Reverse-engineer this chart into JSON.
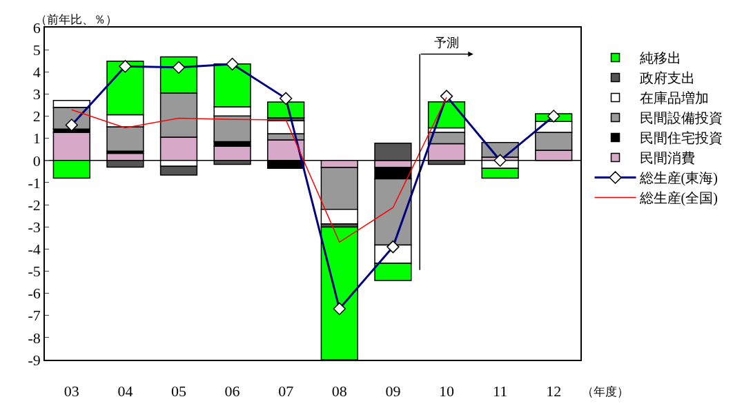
{
  "chart_data": {
    "type": "bar",
    "stacked": true,
    "xlabel": "（年度）",
    "ylabel": "（前年比、％）",
    "categories": [
      "03",
      "04",
      "05",
      "06",
      "07",
      "08",
      "09",
      "10",
      "11",
      "12"
    ],
    "ylim": [
      -9,
      6
    ],
    "yticks": [
      -9,
      -8,
      -7,
      -6,
      -5,
      -4,
      -3,
      -2,
      -1,
      0,
      1,
      2,
      3,
      4,
      5,
      6
    ],
    "grid": false,
    "legend": "right",
    "annotations": [
      "予測"
    ],
    "ref_lines": [
      {
        "axis": "y",
        "value": 0,
        "color": "#000000"
      }
    ],
    "series": [
      {
        "name": "民間消費",
        "color": "#d8a8c8",
        "values": [
          1.27,
          0.32,
          1.05,
          0.64,
          0.93,
          -0.32,
          -0.32,
          0.76,
          0.15,
          0.46
        ]
      },
      {
        "name": "民間住宅投資",
        "color": "#000000",
        "values": [
          0.15,
          0.1,
          null,
          0.21,
          -0.36,
          null,
          -0.51,
          null,
          null,
          null
        ]
      },
      {
        "name": "民間設備投資",
        "color": "#999999",
        "values": [
          0.98,
          1.1,
          1.99,
          1.16,
          0.28,
          -1.89,
          -2.99,
          0.51,
          0.66,
          0.81
        ]
      },
      {
        "name": "在庫品増加",
        "color": "#ffffff",
        "values": [
          0.31,
          0.54,
          -0.26,
          0.41,
          0.58,
          -0.66,
          -0.82,
          0.2,
          -0.36,
          0.49
        ]
      },
      {
        "name": "政府支出",
        "color": "#555555",
        "values": [
          null,
          -0.3,
          -0.4,
          -0.18,
          0.13,
          -0.14,
          0.78,
          -0.18,
          null,
          null
        ]
      },
      {
        "name": "純移出",
        "color": "#00ff00",
        "values": [
          -0.8,
          2.42,
          1.64,
          1.94,
          0.72,
          -5.99,
          -0.78,
          1.18,
          -0.44,
          0.35
        ]
      },
      {
        "name": "総生産(東海)",
        "type": "line",
        "color": "#000080",
        "marker": "diamond",
        "values": [
          1.6,
          4.25,
          4.2,
          4.35,
          2.8,
          -6.7,
          -3.9,
          2.9,
          0.0,
          2.0
        ]
      },
      {
        "name": "総生産(全国)",
        "type": "line",
        "color": "#ff0000",
        "marker": "none",
        "values": [
          2.29,
          1.47,
          1.91,
          1.85,
          1.83,
          -3.69,
          -2.13,
          2.85,
          null,
          null
        ]
      }
    ]
  }
}
